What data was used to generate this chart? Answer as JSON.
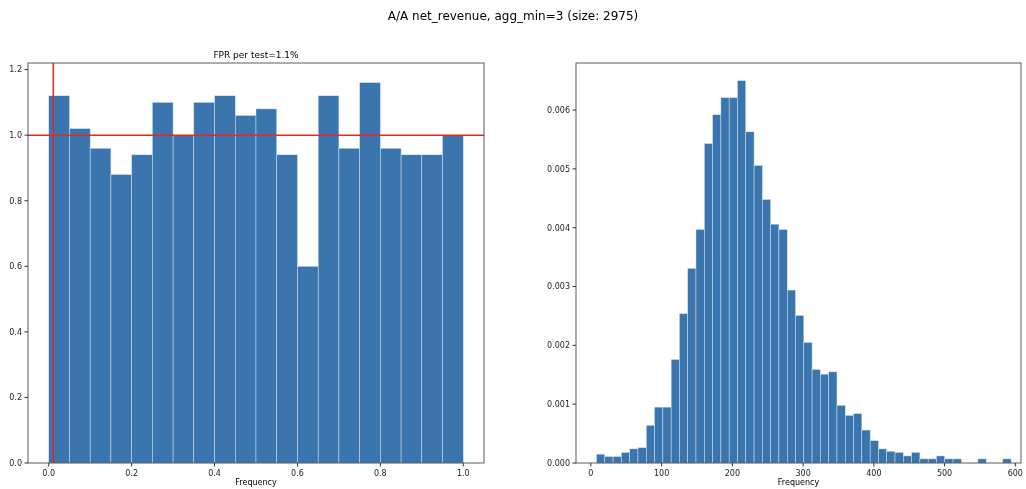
{
  "chart_data": [
    {
      "type": "histogram",
      "title": "FPR per test=1.1%",
      "xlabel": "Frequency",
      "annotations": [
        "A/A net_revenue, agg_min=3 (size: 2975)"
      ],
      "bins": [
        0,
        0.05,
        0.1,
        0.15,
        0.2,
        0.25,
        0.3,
        0.35,
        0.4,
        0.45,
        0.5,
        0.55,
        0.6,
        0.65,
        0.7,
        0.75,
        0.8,
        0.85,
        0.9,
        0.95,
        1.0
      ],
      "values": [
        1.12,
        1.02,
        0.96,
        0.88,
        0.94,
        1.1,
        1.0,
        1.1,
        1.12,
        1.06,
        1.08,
        0.94,
        0.6,
        1.12,
        0.96,
        1.16,
        0.96,
        0.94,
        0.94,
        1.0
      ],
      "color": "#3a75ae",
      "xlim": [
        -0.05,
        1.05
      ],
      "xticks": [
        {
          "value": 0,
          "label": "0.0"
        },
        {
          "value": 0.2,
          "label": "0.2"
        },
        {
          "value": 0.4,
          "label": "0.4"
        },
        {
          "value": 0.6,
          "label": "0.6"
        },
        {
          "value": 0.8,
          "label": "0.8"
        },
        {
          "value": 1.0,
          "label": "1.0"
        }
      ],
      "ylim": [
        0,
        1.22
      ],
      "yticks": [
        {
          "value": 0,
          "label": "0.0"
        },
        {
          "value": 0.2,
          "label": "0.2"
        },
        {
          "value": 0.4,
          "label": "0.4"
        },
        {
          "value": 0.6,
          "label": "0.6"
        },
        {
          "value": 0.8,
          "label": "0.8"
        },
        {
          "value": 1.0,
          "label": "1.0"
        },
        {
          "value": 1.2,
          "label": "1.2"
        }
      ],
      "ref_lines": [
        {
          "axis": "x",
          "value": 0.011,
          "color": "#e8281e"
        },
        {
          "axis": "y",
          "value": 1.0,
          "color": "#e8281e"
        }
      ]
    },
    {
      "type": "histogram",
      "xlabel": "Frequency",
      "bins": [
        8,
        19.7,
        31.4,
        43.2,
        54.9,
        66.6,
        78.3,
        90,
        101.8,
        113.5,
        125.2,
        136.9,
        148.6,
        160.4,
        172.1,
        183.8,
        195.5,
        207.2,
        219,
        230.7,
        242.4,
        254.1,
        265.8,
        277.6,
        289.3,
        301,
        312.7,
        324.4,
        336.2,
        347.9,
        359.6,
        371.3,
        383,
        394.8,
        406.5,
        418.2,
        429.9,
        441.6,
        453.4,
        465.1,
        476.8,
        488.5,
        500.2,
        512,
        523.7,
        535.4,
        547.1,
        558.8,
        570.6,
        582.3,
        594
      ],
      "values": [
        0.00015,
        0.00011,
        0.00011,
        0.00018,
        0.00024,
        0.00026,
        0.00064,
        0.00095,
        0.00095,
        0.00176,
        0.00254,
        0.00331,
        0.00397,
        0.00543,
        0.00592,
        0.00621,
        0.00621,
        0.0065,
        0.00563,
        0.00506,
        0.00448,
        0.00406,
        0.00397,
        0.00294,
        0.00251,
        0.00205,
        0.00159,
        0.00151,
        0.00155,
        0.00098,
        0.00081,
        0.00084,
        0.00056,
        0.00038,
        0.00024,
        0.0002,
        0.00018,
        0.00012,
        0.00018,
        7e-05,
        7e-05,
        0.00012,
        7e-05,
        7e-05,
        0,
        0,
        7e-05,
        0,
        0,
        7e-05
      ],
      "color": "#3a75ae",
      "xlim": [
        -21,
        608
      ],
      "xticks": [
        0,
        100,
        200,
        300,
        400,
        500,
        600
      ],
      "ylim": [
        0,
        0.0068
      ],
      "yticks": [
        {
          "value": 0,
          "label": "0.000"
        },
        {
          "value": 0.001,
          "label": "0.001"
        },
        {
          "value": 0.002,
          "label": "0.002"
        },
        {
          "value": 0.003,
          "label": "0.003"
        },
        {
          "value": 0.004,
          "label": "0.004"
        },
        {
          "value": 0.005,
          "label": "0.005"
        },
        {
          "value": 0.006,
          "label": "0.006"
        }
      ]
    }
  ]
}
